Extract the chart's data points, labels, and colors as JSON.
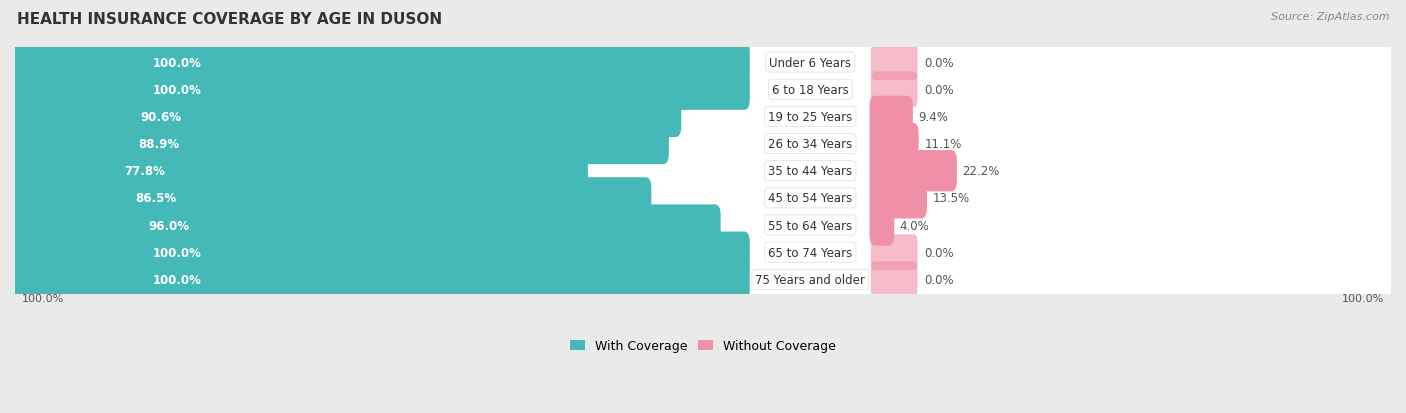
{
  "title": "HEALTH INSURANCE COVERAGE BY AGE IN DUSON",
  "source": "Source: ZipAtlas.com",
  "categories": [
    "Under 6 Years",
    "6 to 18 Years",
    "19 to 25 Years",
    "26 to 34 Years",
    "35 to 44 Years",
    "45 to 54 Years",
    "55 to 64 Years",
    "65 to 74 Years",
    "75 Years and older"
  ],
  "with_coverage": [
    100.0,
    100.0,
    90.6,
    88.9,
    77.8,
    86.5,
    96.0,
    100.0,
    100.0
  ],
  "without_coverage": [
    0.0,
    0.0,
    9.4,
    11.1,
    22.2,
    13.5,
    4.0,
    0.0,
    0.0
  ],
  "color_with": "#45b8b8",
  "color_without": "#f090a8",
  "bg_color": "#eaeaea",
  "row_bg_light": "#f5f5f5",
  "row_bg_dark": "#ebebeb",
  "title_fontsize": 11,
  "label_fontsize": 8.5,
  "cat_fontsize": 8.5,
  "tick_fontsize": 8,
  "legend_fontsize": 9,
  "source_fontsize": 8
}
